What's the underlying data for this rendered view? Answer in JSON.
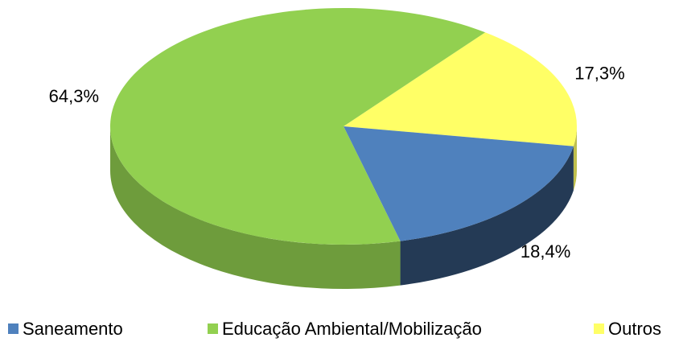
{
  "chart_data": {
    "type": "pie",
    "categories": [
      "Saneamento",
      "Educação Ambiental/Mobilização",
      "Outros"
    ],
    "values": [
      18.4,
      64.3,
      17.3
    ],
    "value_labels": [
      "18,4%",
      "64,3%",
      "17,3%"
    ],
    "colors": [
      "#4f81bd",
      "#92d050",
      "#ffff66"
    ],
    "legend": "bottom"
  }
}
